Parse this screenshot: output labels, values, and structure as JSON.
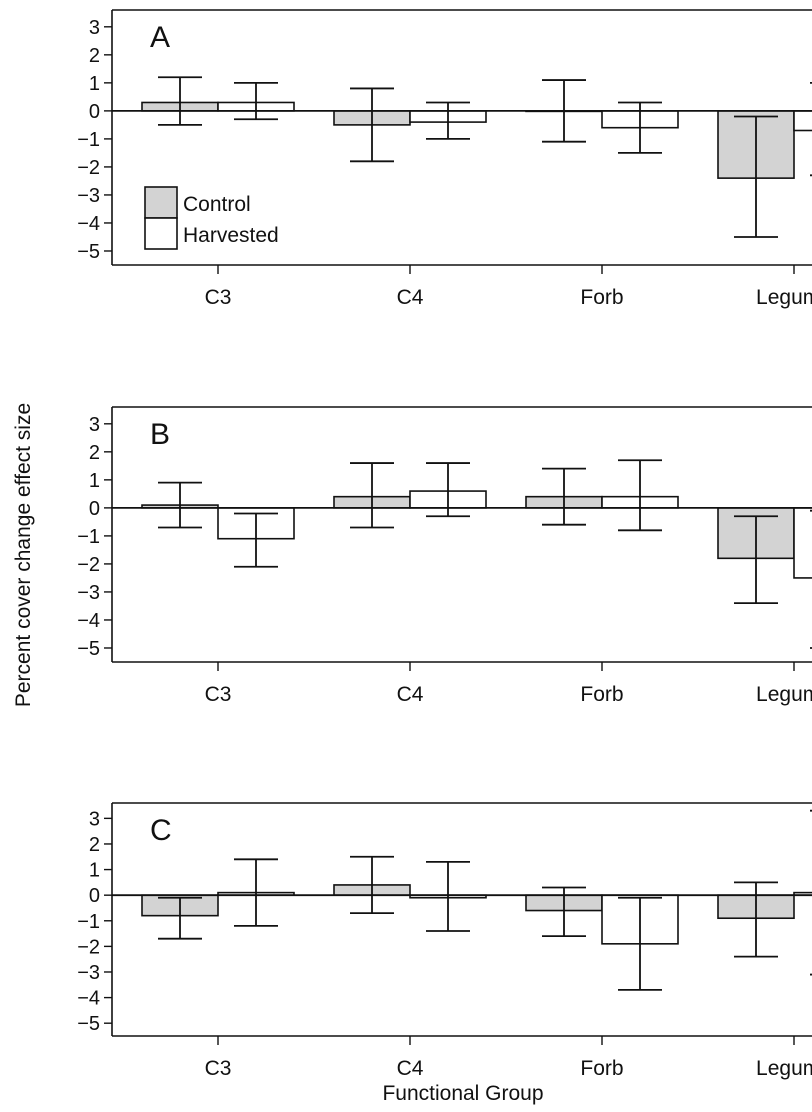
{
  "ylabel": "Percent cover change effect size",
  "xlabel": "Functional Group",
  "legend": [
    {
      "name": "Control",
      "color": "#d3d3d3"
    },
    {
      "name": "Harvested",
      "color": "#ffffff"
    }
  ],
  "chart_data": [
    {
      "type": "bar",
      "panel": "A",
      "categories": [
        "C3",
        "C4",
        "Forb",
        "Legume"
      ],
      "ylim": [
        -5.5,
        3.6
      ],
      "yticks": [
        -5,
        -4,
        -3,
        -2,
        -1,
        0,
        1,
        2,
        3
      ],
      "legend_position": "bottom-left",
      "series": [
        {
          "name": "Control",
          "values": [
            0.3,
            -0.5,
            0.0,
            -2.4
          ],
          "err_low": [
            -0.5,
            -1.8,
            -1.1,
            -4.5
          ],
          "err_high": [
            1.2,
            0.8,
            1.1,
            -0.2
          ]
        },
        {
          "name": "Harvested",
          "values": [
            0.3,
            -0.4,
            -0.6,
            -0.7
          ],
          "err_low": [
            -0.3,
            -1.0,
            -1.5,
            -2.3
          ],
          "err_high": [
            1.0,
            0.3,
            0.3,
            1.0
          ]
        }
      ]
    },
    {
      "type": "bar",
      "panel": "B",
      "categories": [
        "C3",
        "C4",
        "Forb",
        "Legume"
      ],
      "ylim": [
        -5.5,
        3.6
      ],
      "yticks": [
        -5,
        -4,
        -3,
        -2,
        -1,
        0,
        1,
        2,
        3
      ],
      "series": [
        {
          "name": "Control",
          "values": [
            0.1,
            0.4,
            0.4,
            -1.8
          ],
          "err_low": [
            -0.7,
            -0.7,
            -0.6,
            -3.4
          ],
          "err_high": [
            0.9,
            1.6,
            1.4,
            -0.3
          ]
        },
        {
          "name": "Harvested",
          "values": [
            -1.1,
            0.6,
            0.4,
            -2.5
          ],
          "err_low": [
            -2.1,
            -0.3,
            -0.8,
            -5.0
          ],
          "err_high": [
            -0.2,
            1.6,
            1.7,
            -0.1
          ]
        }
      ]
    },
    {
      "type": "bar",
      "panel": "C",
      "categories": [
        "C3",
        "C4",
        "Forb",
        "Legume"
      ],
      "ylim": [
        -5.5,
        3.6
      ],
      "yticks": [
        -5,
        -4,
        -3,
        -2,
        -1,
        0,
        1,
        2,
        3
      ],
      "series": [
        {
          "name": "Control",
          "values": [
            -0.8,
            0.4,
            -0.6,
            -0.9
          ],
          "err_low": [
            -1.7,
            -0.7,
            -1.6,
            -2.4
          ],
          "err_high": [
            -0.1,
            1.5,
            0.3,
            0.5
          ]
        },
        {
          "name": "Harvested",
          "values": [
            0.1,
            -0.1,
            -1.9,
            0.1
          ],
          "err_low": [
            -1.2,
            -1.4,
            -3.7,
            -3.1
          ],
          "err_high": [
            1.4,
            1.3,
            -0.1,
            3.3
          ]
        }
      ]
    }
  ]
}
